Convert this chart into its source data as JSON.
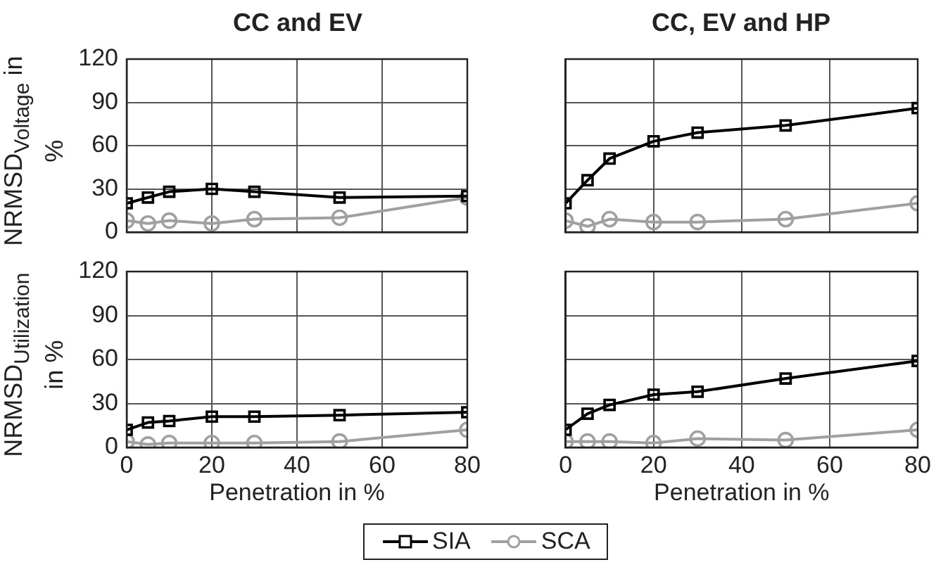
{
  "chart_data": [
    {
      "type": "line",
      "title": "CC and EV",
      "ylabel": "NRMSD$_{Voltage}$ in %",
      "x": [
        0,
        5,
        10,
        20,
        30,
        50,
        80
      ],
      "xlim": [
        0,
        80
      ],
      "xticks": [
        0,
        20,
        40,
        60,
        80
      ],
      "ylim": [
        0,
        120
      ],
      "yticks": [
        0,
        30,
        60,
        90,
        120
      ],
      "grid": true,
      "legend": "bottom",
      "tick_labels": "y",
      "series": [
        {
          "name": "SIA",
          "color": "#000000",
          "marker": "square",
          "values": [
            20,
            24,
            28,
            30,
            28,
            24,
            25
          ]
        },
        {
          "name": "SCA",
          "color": "#a0a0a0",
          "marker": "circle",
          "values": [
            8,
            6,
            8,
            6,
            9,
            10,
            24
          ]
        }
      ]
    },
    {
      "type": "line",
      "title": "CC, EV and HP",
      "x": [
        0,
        5,
        10,
        20,
        30,
        50,
        80
      ],
      "xlim": [
        0,
        80
      ],
      "xticks": [
        0,
        20,
        40,
        60,
        80
      ],
      "ylim": [
        0,
        120
      ],
      "yticks": [
        0,
        30,
        60,
        90,
        120
      ],
      "grid": true,
      "legend": "bottom",
      "tick_labels": false,
      "series": [
        {
          "name": "SIA",
          "color": "#000000",
          "marker": "square",
          "values": [
            20,
            36,
            51,
            63,
            69,
            74,
            86
          ]
        },
        {
          "name": "SCA",
          "color": "#a0a0a0",
          "marker": "circle",
          "values": [
            8,
            4,
            9,
            7,
            7,
            9,
            20
          ]
        }
      ]
    },
    {
      "type": "line",
      "ylabel": "NRMSD$_{Utilization}$ in %",
      "xlabel": "Penetration in %",
      "x": [
        0,
        5,
        10,
        20,
        30,
        50,
        80
      ],
      "xlim": [
        0,
        80
      ],
      "xticks": [
        0,
        20,
        40,
        60,
        80
      ],
      "ylim": [
        0,
        120
      ],
      "yticks": [
        0,
        30,
        60,
        90,
        120
      ],
      "grid": true,
      "legend": "bottom",
      "series": [
        {
          "name": "SIA",
          "color": "#000000",
          "marker": "square",
          "values": [
            12,
            17,
            18,
            21,
            21,
            22,
            24
          ]
        },
        {
          "name": "SCA",
          "color": "#a0a0a0",
          "marker": "circle",
          "values": [
            4,
            2,
            3,
            3,
            3,
            4,
            12
          ]
        }
      ]
    },
    {
      "type": "line",
      "xlabel": "Penetration in %",
      "x": [
        0,
        5,
        10,
        20,
        30,
        50,
        80
      ],
      "xlim": [
        0,
        80
      ],
      "xticks": [
        0,
        20,
        40,
        60,
        80
      ],
      "ylim": [
        0,
        120
      ],
      "yticks": [
        0,
        30,
        60,
        90,
        120
      ],
      "grid": true,
      "legend": "bottom",
      "tick_labels": "x",
      "series": [
        {
          "name": "SIA",
          "color": "#000000",
          "marker": "square",
          "values": [
            12,
            23,
            29,
            36,
            38,
            47,
            59
          ]
        },
        {
          "name": "SCA",
          "color": "#a0a0a0",
          "marker": "circle",
          "values": [
            4,
            4,
            4,
            3,
            6,
            5,
            12
          ]
        }
      ]
    }
  ]
}
